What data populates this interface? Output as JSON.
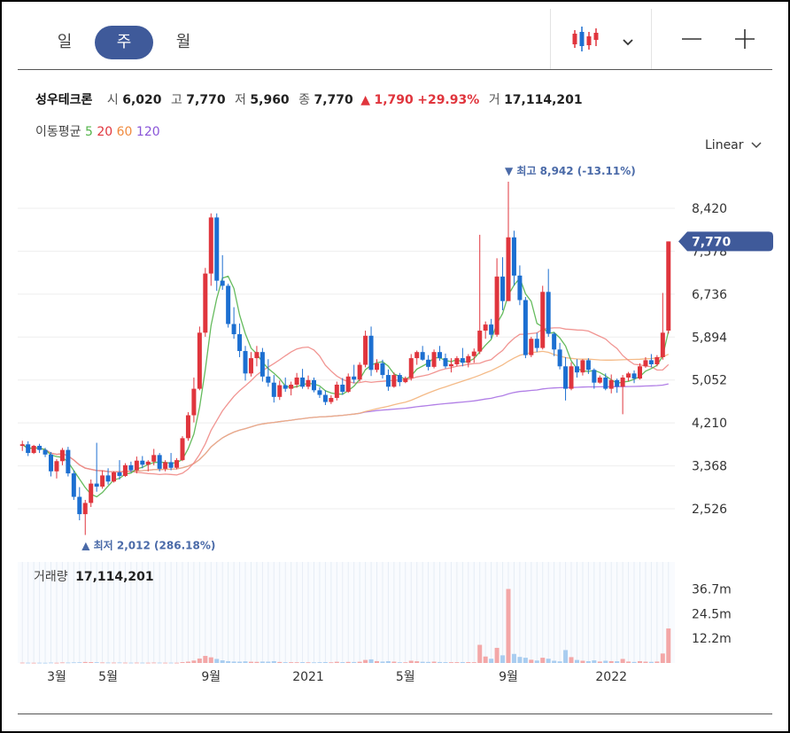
{
  "periods": {
    "day": "일",
    "week": "주",
    "month": "월",
    "active": "week"
  },
  "toolbar": {
    "chart_type_icon": "candlestick-icon",
    "dropdown_icon": "chevron-down-icon",
    "zoom_out": "—",
    "zoom_in": "+"
  },
  "stock": {
    "name": "성우테크론",
    "open_label": "시",
    "open": "6,020",
    "high_label": "고",
    "high": "7,770",
    "low_label": "저",
    "low": "5,960",
    "close_label": "종",
    "close": "7,770",
    "change_arrow": "▲",
    "change": "1,790",
    "change_pct": "+29.93%",
    "volume_label": "거",
    "volume": "17,114,201"
  },
  "ma_legend": {
    "label": "이동평균",
    "p5": "5",
    "p20": "20",
    "p60": "60",
    "p120": "120"
  },
  "scale_selector": "Linear",
  "colors": {
    "up": "#e0353d",
    "down": "#1c6fd1",
    "ma5": "#54b44b",
    "ma20": "#f08a86",
    "ma60": "#f3b37a",
    "ma120": "#a971e3",
    "current_badge": "#3f5a9a",
    "volume_up": "#f3a7a7",
    "volume_down": "#a9cdf0"
  },
  "chart_data": {
    "type": "candlestick",
    "price_axis": {
      "ticks": [
        "8,420",
        "7,578",
        "6,736",
        "5,894",
        "5,052",
        "4,210",
        "3,368",
        "2,526"
      ],
      "range": [
        2000,
        9100
      ]
    },
    "x_axis": {
      "labels": [
        "3월",
        "5월",
        "9월",
        "2021",
        "5월",
        "9월",
        "2022"
      ]
    },
    "current_price_label": "7,770",
    "annotations": {
      "high": "▼ 최고 8,942 (-13.11%)",
      "low": "▲ 최저 2,012 (286.18%)"
    },
    "candles": [
      [
        3760,
        3860,
        3660,
        3790
      ],
      [
        3790,
        3850,
        3560,
        3620
      ],
      [
        3620,
        3780,
        3600,
        3760
      ],
      [
        3760,
        3800,
        3620,
        3680
      ],
      [
        3680,
        3720,
        3540,
        3590
      ],
      [
        3590,
        3640,
        3160,
        3260
      ],
      [
        3260,
        3500,
        3120,
        3460
      ],
      [
        3460,
        3720,
        3380,
        3680
      ],
      [
        3680,
        3740,
        3160,
        3220
      ],
      [
        3220,
        3280,
        2700,
        2760
      ],
      [
        2760,
        2950,
        2300,
        2420
      ],
      [
        2420,
        2700,
        2012,
        2640
      ],
      [
        2640,
        3100,
        2560,
        3020
      ],
      [
        3020,
        3820,
        2860,
        2960
      ],
      [
        2960,
        3280,
        2920,
        3180
      ],
      [
        3180,
        3320,
        3000,
        3060
      ],
      [
        3060,
        3260,
        3040,
        3240
      ],
      [
        3240,
        3480,
        3100,
        3170
      ],
      [
        3170,
        3420,
        3150,
        3380
      ],
      [
        3380,
        3450,
        3240,
        3280
      ],
      [
        3280,
        3550,
        3220,
        3470
      ],
      [
        3470,
        3560,
        3320,
        3390
      ],
      [
        3390,
        3480,
        3260,
        3450
      ],
      [
        3450,
        3700,
        3380,
        3580
      ],
      [
        3580,
        3620,
        3260,
        3310
      ],
      [
        3310,
        3480,
        3260,
        3440
      ],
      [
        3440,
        3620,
        3280,
        3330
      ],
      [
        3330,
        3520,
        3300,
        3480
      ],
      [
        3480,
        3950,
        3460,
        3910
      ],
      [
        3910,
        4420,
        3860,
        4360
      ],
      [
        4360,
        5100,
        4220,
        4880
      ],
      [
        4880,
        6100,
        4850,
        5980
      ],
      [
        5980,
        7250,
        5900,
        7140
      ],
      [
        7140,
        8320,
        6900,
        8240
      ],
      [
        8240,
        8320,
        6800,
        7000
      ],
      [
        7000,
        7500,
        6820,
        6900
      ],
      [
        6900,
        6940,
        6080,
        6150
      ],
      [
        6150,
        6480,
        5860,
        5950
      ],
      [
        5950,
        6160,
        5500,
        5620
      ],
      [
        5620,
        5720,
        5040,
        5180
      ],
      [
        5180,
        5600,
        5120,
        5480
      ],
      [
        5480,
        5720,
        5320,
        5600
      ],
      [
        5600,
        5680,
        5020,
        5120
      ],
      [
        5120,
        5460,
        4920,
        5000
      ],
      [
        5000,
        5150,
        4610,
        4720
      ],
      [
        4720,
        5040,
        4660,
        4950
      ],
      [
        4950,
        5100,
        4820,
        4880
      ],
      [
        4880,
        5020,
        4750,
        4960
      ],
      [
        4960,
        5190,
        4900,
        5100
      ],
      [
        5100,
        5270,
        4880,
        4920
      ],
      [
        4920,
        5140,
        4870,
        5050
      ],
      [
        5050,
        5100,
        4810,
        4850
      ],
      [
        4850,
        4910,
        4700,
        4760
      ],
      [
        4760,
        4850,
        4560,
        4620
      ],
      [
        4620,
        4750,
        4580,
        4700
      ],
      [
        4700,
        5020,
        4650,
        4960
      ],
      [
        4960,
        5090,
        4760,
        4820
      ],
      [
        4820,
        5180,
        4800,
        5120
      ],
      [
        5120,
        5350,
        4990,
        5060
      ],
      [
        5060,
        5400,
        5020,
        5350
      ],
      [
        5350,
        6020,
        5300,
        5920
      ],
      [
        5920,
        6100,
        5130,
        5250
      ],
      [
        5250,
        5460,
        5200,
        5380
      ],
      [
        5380,
        5450,
        5080,
        5150
      ],
      [
        5150,
        5260,
        4840,
        4920
      ],
      [
        4920,
        5200,
        4900,
        5150
      ],
      [
        5150,
        5190,
        4930,
        5010
      ],
      [
        5010,
        5120,
        4990,
        5090
      ],
      [
        5090,
        5560,
        5040,
        5480
      ],
      [
        5480,
        5630,
        5350,
        5600
      ],
      [
        5600,
        5720,
        5430,
        5450
      ],
      [
        5450,
        5540,
        5240,
        5310
      ],
      [
        5310,
        5650,
        5280,
        5600
      ],
      [
        5600,
        5720,
        5430,
        5480
      ],
      [
        5480,
        5570,
        5280,
        5320
      ],
      [
        5320,
        5480,
        5200,
        5360
      ],
      [
        5360,
        5520,
        5320,
        5480
      ],
      [
        5480,
        5680,
        5320,
        5390
      ],
      [
        5390,
        5560,
        5300,
        5520
      ],
      [
        5520,
        5670,
        5390,
        5610
      ],
      [
        5610,
        7900,
        5560,
        6020
      ],
      [
        6020,
        6200,
        5860,
        6140
      ],
      [
        6140,
        6250,
        5870,
        5940
      ],
      [
        5940,
        7440,
        5900,
        7080
      ],
      [
        7080,
        7460,
        6420,
        6600
      ],
      [
        6600,
        8942,
        6600,
        7850
      ],
      [
        7850,
        7980,
        6900,
        7100
      ],
      [
        7100,
        7300,
        6520,
        6620
      ],
      [
        6620,
        6680,
        5480,
        5540
      ],
      [
        5540,
        5900,
        5500,
        5860
      ],
      [
        5860,
        5980,
        5600,
        5680
      ],
      [
        5680,
        6900,
        5650,
        6780
      ],
      [
        6780,
        7230,
        5900,
        5960
      ],
      [
        5960,
        5990,
        5520,
        5650
      ],
      [
        5650,
        5780,
        5260,
        5320
      ],
      [
        5320,
        5500,
        4650,
        4880
      ],
      [
        4880,
        5400,
        4850,
        5320
      ],
      [
        5320,
        5460,
        5100,
        5200
      ],
      [
        5200,
        5460,
        5140,
        5440
      ],
      [
        5440,
        5480,
        5170,
        5250
      ],
      [
        5250,
        5280,
        4880,
        5000
      ],
      [
        5000,
        5140,
        4980,
        5100
      ],
      [
        5100,
        5180,
        4850,
        4880
      ],
      [
        4880,
        5160,
        4790,
        5050
      ],
      [
        5050,
        5080,
        4800,
        4920
      ],
      [
        4920,
        5150,
        4380,
        5100
      ],
      [
        5100,
        5210,
        5030,
        5180
      ],
      [
        5180,
        5240,
        4990,
        5080
      ],
      [
        5080,
        5380,
        5060,
        5320
      ],
      [
        5320,
        5500,
        5290,
        5440
      ],
      [
        5440,
        5560,
        5300,
        5360
      ],
      [
        5360,
        5540,
        5320,
        5500
      ],
      [
        5500,
        6760,
        5450,
        5980
      ],
      [
        6020,
        7770,
        5960,
        7770
      ]
    ],
    "volume_axis": {
      "ticks": [
        "36.7m",
        "24.5m",
        "12.2m"
      ],
      "max": 40000000
    },
    "volume_label": "거래량",
    "volume_value": "17,114,201",
    "volumes": [
      180000,
      150000,
      120000,
      140000,
      110000,
      200000,
      130000,
      260000,
      220000,
      300000,
      350000,
      500000,
      420000,
      380000,
      260000,
      220000,
      200000,
      240000,
      180000,
      160000,
      190000,
      170000,
      150000,
      210000,
      180000,
      150000,
      160000,
      140000,
      420000,
      650000,
      1200000,
      2200000,
      3500000,
      2800000,
      2000000,
      1300000,
      900000,
      700000,
      650000,
      800000,
      600000,
      550000,
      700000,
      650000,
      900000,
      500000,
      400000,
      380000,
      350000,
      420000,
      330000,
      300000,
      380000,
      450000,
      330000,
      600000,
      420000,
      520000,
      480000,
      600000,
      1500000,
      1800000,
      900000,
      700000,
      900000,
      650000,
      380000,
      340000,
      1100000,
      850000,
      600000,
      520000,
      650000,
      480000,
      420000,
      380000,
      400000,
      460000,
      420000,
      380000,
      9000000,
      3200000,
      2100000,
      7500000,
      3800000,
      36700000,
      4500000,
      3000000,
      2600000,
      1600000,
      1200000,
      2600000,
      2100000,
      1100000,
      800000,
      6400000,
      2900000,
      1500000,
      1100000,
      900000,
      1300000,
      700000,
      1100000,
      900000,
      850000,
      2000000,
      700000,
      520000,
      900000,
      650000,
      560000,
      700000,
      4700000,
      17114201
    ]
  }
}
